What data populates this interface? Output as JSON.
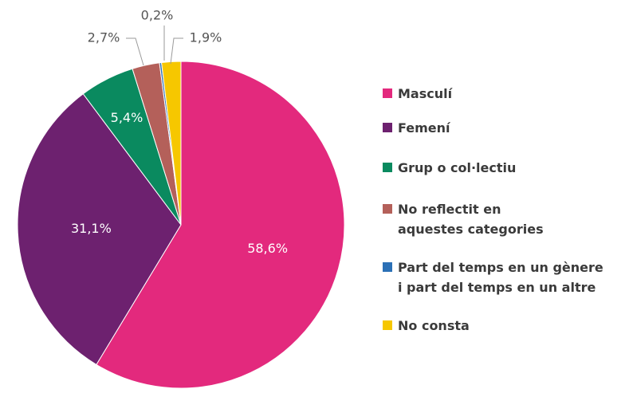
{
  "chart_data": {
    "type": "pie",
    "categories": [
      "Masculí",
      "Femení",
      "Grup o col·lectiu",
      "No reflectit en\naquestes categories",
      "Part del temps en un gènere\ni part del temps en un altre",
      "No consta"
    ],
    "values": [
      58.6,
      31.1,
      5.4,
      2.7,
      0.2,
      1.9
    ],
    "value_labels": [
      "58,6%",
      "31,1%",
      "5,4%",
      "2,7%",
      "0,2%",
      "1,9%"
    ],
    "colors": [
      "#e3297d",
      "#6d216f",
      "#0a8a5f",
      "#b4605a",
      "#2b70b6",
      "#f6c700"
    ],
    "legend": "right"
  }
}
